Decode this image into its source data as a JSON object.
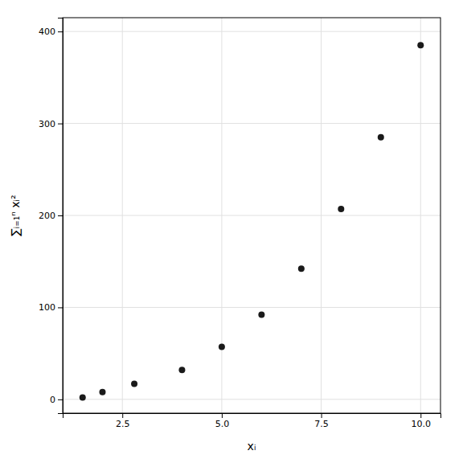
{
  "chart_data": {
    "type": "scatter",
    "x": [
      1.5,
      2.0,
      2.8,
      4.0,
      5.0,
      6.0,
      7.0,
      8.0,
      9.0,
      10.0
    ],
    "y": [
      2,
      8,
      17,
      32,
      57,
      92,
      142,
      207,
      285,
      385
    ],
    "xlabel": "xᵢ",
    "ylabel": "∑ᵢ₌₁ⁿ xᵢ²",
    "xlim": [
      1.0,
      10.5
    ],
    "ylim": [
      -15,
      415
    ],
    "xticks": [
      2.5,
      {
        "value": 5.0,
        "label": "5.0"
      },
      7.5,
      {
        "value": 10.0,
        "label": "10.0"
      }
    ],
    "yticks": [
      0,
      100,
      200,
      300,
      400
    ],
    "color": "#1a1a1a",
    "grid": true
  }
}
